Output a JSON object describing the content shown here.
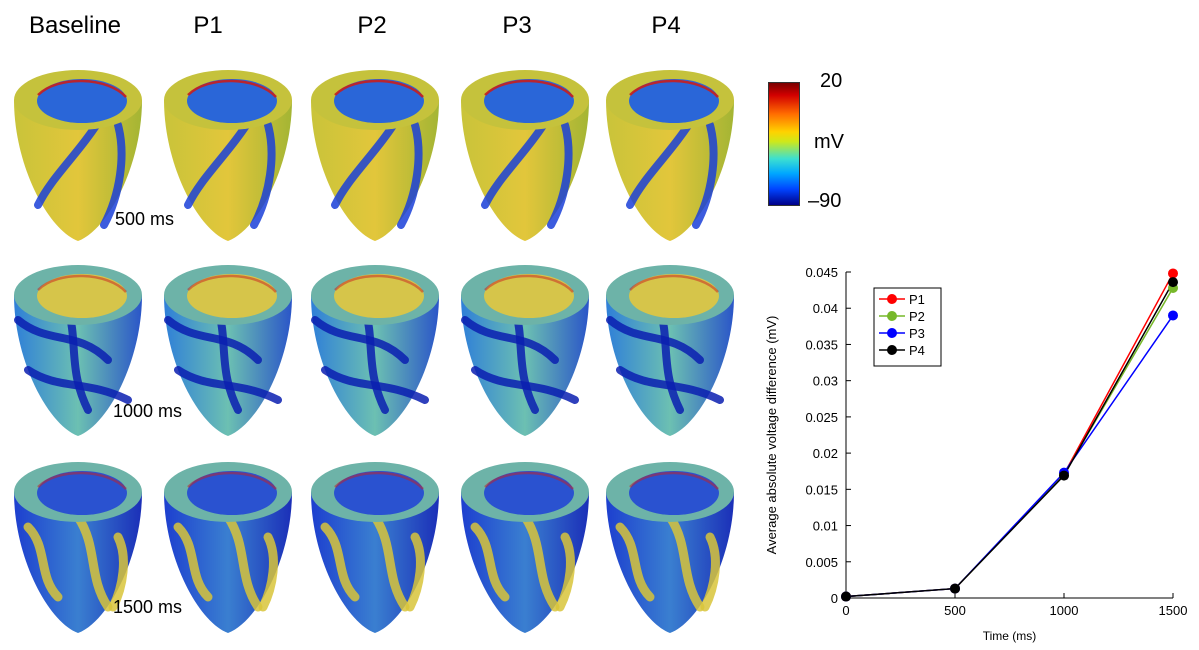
{
  "panel_columns": [
    "Baseline",
    "P1",
    "P2",
    "P3",
    "P4"
  ],
  "panel_rows": [
    "500 ms",
    "1000 ms",
    "1500 ms"
  ],
  "colorbar": {
    "max": "20",
    "unit": "mV",
    "min": "–90"
  },
  "chart_data": {
    "type": "line",
    "xlabel": "Time (ms)",
    "ylabel": "Average absolute voltage difference (mV)",
    "x": [
      0,
      500,
      1000,
      1500
    ],
    "xticks": [
      "0",
      "500",
      "1000",
      "1500"
    ],
    "xlim": [
      0,
      1500
    ],
    "ylim": [
      0,
      0.045
    ],
    "yticks": [
      "0",
      "0.005",
      "0.01",
      "0.015",
      "0.02",
      "0.025",
      "0.03",
      "0.035",
      "0.04",
      "0.045"
    ],
    "legend_position": "top-left",
    "grid": false,
    "series": [
      {
        "name": "P1",
        "color": "#ff0000",
        "values": [
          0.0002,
          0.0013,
          0.0171,
          0.0448
        ]
      },
      {
        "name": "P2",
        "color": "#77b82a",
        "values": [
          0.0002,
          0.0013,
          0.017,
          0.0428
        ]
      },
      {
        "name": "P3",
        "color": "#0000ff",
        "values": [
          0.0002,
          0.0013,
          0.0173,
          0.039
        ]
      },
      {
        "name": "P4",
        "color": "#000000",
        "values": [
          0.0002,
          0.0013,
          0.0169,
          0.0436
        ]
      }
    ]
  }
}
